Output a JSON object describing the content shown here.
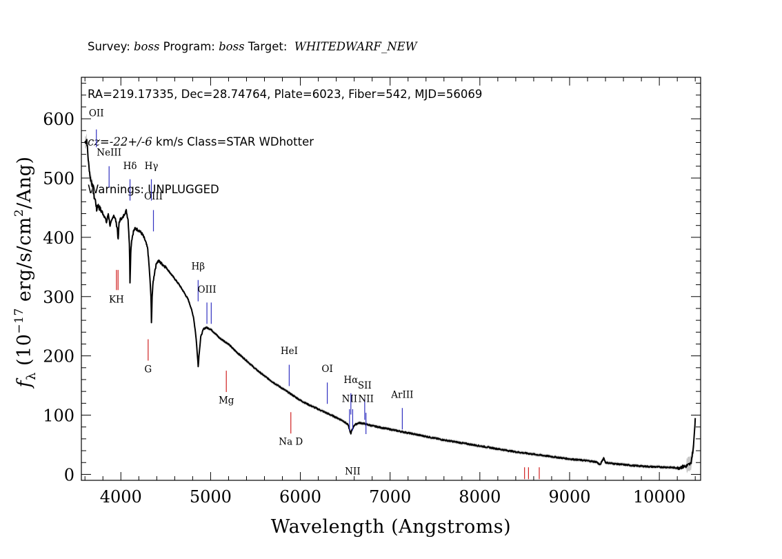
{
  "header": {
    "line1": {
      "survey_prefix": "Survey: ",
      "survey": "boss",
      "program_prefix": " Program: ",
      "program": "boss",
      "target_prefix": " Target:  ",
      "target": "WHITEDWARF_NEW"
    },
    "line2": "RA=219.17335, Dec=28.74764, Plate=6023, Fiber=542, MJD=56069",
    "line3": {
      "cz": "cz=-22+/-6",
      "rest": " km/s Class=STAR WDhotter"
    },
    "line4": "Warnings: UNPLUGGED"
  },
  "colors": {
    "spectrum": "#000000",
    "error_band": "#c8c8c8",
    "emission_line": "#3030c0",
    "absorption_line": "#d02020",
    "axes": "#000000"
  },
  "chart_data": {
    "type": "line",
    "title": "",
    "xlabel": "Wavelength (Angstroms)",
    "ylabel": "f_λ (10⁻¹⁷ erg/s/cm²/Ang)",
    "ylabel_parts": {
      "symbol": "f",
      "subscript": "λ",
      "open": " (10",
      "exponent1": "−17",
      "mid": " erg/s/cm",
      "exponent2": "2",
      "close": "/Ang)"
    },
    "xlim": [
      3560,
      10460
    ],
    "ylim": [
      -10,
      670
    ],
    "x_ticks": [
      4000,
      5000,
      6000,
      7000,
      8000,
      9000,
      10000
    ],
    "x_tick_labels": [
      "4000",
      "5000",
      "6000",
      "7000",
      "8000",
      "9000",
      "10000"
    ],
    "x_minor_step": 200,
    "y_ticks": [
      0,
      100,
      200,
      300,
      400,
      500,
      600
    ],
    "y_tick_labels": [
      "0",
      "100",
      "200",
      "300",
      "400",
      "500",
      "600"
    ],
    "y_minor_step": 20,
    "series": [
      {
        "points": [
          [
            3600,
            560
          ],
          [
            3620,
            565
          ],
          [
            3630,
            545
          ],
          [
            3640,
            525
          ],
          [
            3660,
            500
          ],
          [
            3680,
            490
          ],
          [
            3700,
            470
          ],
          [
            3720,
            460
          ],
          [
            3730,
            445
          ],
          [
            3740,
            455
          ],
          [
            3760,
            450
          ],
          [
            3780,
            445
          ],
          [
            3800,
            440
          ],
          [
            3820,
            435
          ],
          [
            3840,
            425
          ],
          [
            3860,
            440
          ],
          [
            3880,
            420
          ],
          [
            3900,
            428
          ],
          [
            3920,
            438
          ],
          [
            3940,
            430
          ],
          [
            3960,
            415
          ],
          [
            3970,
            395
          ],
          [
            3980,
            425
          ],
          [
            4000,
            432
          ],
          [
            4020,
            432
          ],
          [
            4040,
            440
          ],
          [
            4060,
            445
          ],
          [
            4080,
            430
          ],
          [
            4095,
            390
          ],
          [
            4102,
            325
          ],
          [
            4110,
            375
          ],
          [
            4120,
            395
          ],
          [
            4140,
            410
          ],
          [
            4160,
            415
          ],
          [
            4200,
            412
          ],
          [
            4240,
            405
          ],
          [
            4270,
            395
          ],
          [
            4300,
            380
          ],
          [
            4320,
            340
          ],
          [
            4335,
            300
          ],
          [
            4341,
            255
          ],
          [
            4348,
            300
          ],
          [
            4360,
            325
          ],
          [
            4380,
            345
          ],
          [
            4400,
            358
          ],
          [
            4420,
            360
          ],
          [
            4450,
            356
          ],
          [
            4500,
            350
          ],
          [
            4550,
            340
          ],
          [
            4600,
            330
          ],
          [
            4650,
            320
          ],
          [
            4700,
            308
          ],
          [
            4750,
            295
          ],
          [
            4780,
            282
          ],
          [
            4810,
            265
          ],
          [
            4835,
            235
          ],
          [
            4855,
            198
          ],
          [
            4862,
            182
          ],
          [
            4870,
            200
          ],
          [
            4890,
            232
          ],
          [
            4920,
            245
          ],
          [
            4950,
            248
          ],
          [
            5000,
            245
          ],
          [
            5050,
            238
          ],
          [
            5100,
            230
          ],
          [
            5150,
            225
          ],
          [
            5200,
            220
          ],
          [
            5250,
            212
          ],
          [
            5300,
            205
          ],
          [
            5400,
            192
          ],
          [
            5500,
            178
          ],
          [
            5600,
            166
          ],
          [
            5700,
            155
          ],
          [
            5800,
            145
          ],
          [
            5900,
            135
          ],
          [
            6000,
            125
          ],
          [
            6100,
            117
          ],
          [
            6200,
            110
          ],
          [
            6300,
            103
          ],
          [
            6400,
            96
          ],
          [
            6480,
            90
          ],
          [
            6530,
            84
          ],
          [
            6555,
            72
          ],
          [
            6563,
            68
          ],
          [
            6572,
            74
          ],
          [
            6600,
            83
          ],
          [
            6650,
            87
          ],
          [
            6700,
            86
          ],
          [
            6800,
            82
          ],
          [
            7000,
            76
          ],
          [
            7200,
            70
          ],
          [
            7400,
            64
          ],
          [
            7600,
            58
          ],
          [
            7800,
            53
          ],
          [
            8000,
            48
          ],
          [
            8200,
            43
          ],
          [
            8400,
            38
          ],
          [
            8600,
            34
          ],
          [
            8800,
            30
          ],
          [
            9000,
            26
          ],
          [
            9200,
            23
          ],
          [
            9300,
            21
          ],
          [
            9340,
            16
          ],
          [
            9360,
            22
          ],
          [
            9380,
            28
          ],
          [
            9400,
            20
          ],
          [
            9500,
            18
          ],
          [
            9700,
            15
          ],
          [
            9900,
            13
          ],
          [
            10100,
            12
          ],
          [
            10200,
            11
          ],
          [
            10300,
            14
          ],
          [
            10350,
            18
          ],
          [
            10380,
            45
          ],
          [
            10400,
            95
          ]
        ]
      }
    ],
    "emission_lines": [
      {
        "label": "OII",
        "wavelength": 3727,
        "y1": 582,
        "y2": 552,
        "label_y": 604
      },
      {
        "label": "NeIII",
        "wavelength": 3869,
        "y1": 520,
        "y2": 484,
        "label_y": 538
      },
      {
        "label": "Hδ",
        "wavelength": 4102,
        "y1": 498,
        "y2": 462,
        "label_y": 515
      },
      {
        "label": "Hγ",
        "wavelength": 4340,
        "y1": 498,
        "y2": 462,
        "label_y": 515
      },
      {
        "label": "OIII",
        "wavelength": 4363,
        "y1": 446,
        "y2": 410,
        "label_y": 464
      },
      {
        "label": "Hβ",
        "wavelength": 4861,
        "y1": 328,
        "y2": 292,
        "label_y": 346
      },
      {
        "label": "OIII",
        "wavelength": 4959,
        "y1": 290,
        "y2": 254,
        "label_y": 307
      },
      {
        "label": "",
        "wavelength": 5007,
        "y1": 290,
        "y2": 254,
        "label_y": 0
      },
      {
        "label": "HeI",
        "wavelength": 5876,
        "y1": 185,
        "y2": 149,
        "label_y": 203
      },
      {
        "label": "OI",
        "wavelength": 6300,
        "y1": 155,
        "y2": 119,
        "label_y": 173
      },
      {
        "label": "NII",
        "wavelength": 6548,
        "y1": 110,
        "y2": 74,
        "label_y": 122
      },
      {
        "label": "Hα",
        "wavelength": 6563,
        "y1": 137,
        "y2": 101,
        "label_y": 154
      },
      {
        "label": "NII",
        "wavelength": 6583,
        "y1": 110,
        "y2": 74,
        "label_y": 0
      },
      {
        "label": "SII",
        "wavelength": 6717,
        "y1": 128,
        "y2": 92,
        "label_y": 145
      },
      {
        "label": "NII",
        "wavelength": 6731,
        "y1": 104,
        "y2": 68,
        "label_y": 122
      },
      {
        "label": "ArIII",
        "wavelength": 7136,
        "y1": 112,
        "y2": 76,
        "label_y": 129
      }
    ],
    "absorption_lines": [
      {
        "label": "KH",
        "wavelength": 3951,
        "y1": 345,
        "y2": 311,
        "label_y": 290
      },
      {
        "label": "",
        "wavelength": 3969,
        "y1": 345,
        "y2": 311,
        "label_y": 0
      },
      {
        "label": "G",
        "wavelength": 4304,
        "y1": 228,
        "y2": 192,
        "label_y": 172
      },
      {
        "label": "Mg",
        "wavelength": 5175,
        "y1": 175,
        "y2": 139,
        "label_y": 120
      },
      {
        "label": "Na D",
        "wavelength": 5894,
        "y1": 105,
        "y2": 69,
        "label_y": 50
      },
      {
        "label": "",
        "wavelength": 8498,
        "y1": 12,
        "y2": -8,
        "label_y": 0
      },
      {
        "label": "",
        "wavelength": 8542,
        "y1": 12,
        "y2": -8,
        "label_y": 0
      },
      {
        "label": "",
        "wavelength": 8662,
        "y1": 12,
        "y2": -8,
        "label_y": 0
      }
    ]
  }
}
